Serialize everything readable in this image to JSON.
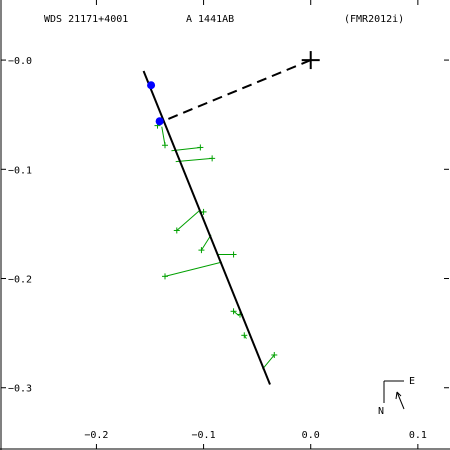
{
  "header": {
    "wds_id": "WDS 21171+4001",
    "discoverer": "A  1441AB",
    "reference": "(FMR2012i)"
  },
  "compass": {
    "east_label": "E",
    "north_label": "N"
  },
  "colors": {
    "axes": "#000000",
    "observations": "#00a000",
    "highlight_points": "#0000ff",
    "orbit_line": "#000000"
  },
  "chart_data": {
    "type": "scatter",
    "x_tick_labels": [
      "−0.2",
      "−0.1",
      "0.0",
      "0.1"
    ],
    "y_tick_labels": [
      "−0.0",
      "−0.1",
      "−0.2",
      "−0.3"
    ],
    "x_ticks": [
      -0.2,
      -0.1,
      0.0,
      0.1
    ],
    "y_ticks": [
      0.0,
      -0.1,
      -0.2,
      -0.3
    ],
    "xlim": [
      -0.29,
      0.13
    ],
    "ylim": [
      -0.357,
      0.055
    ],
    "primary": {
      "x": 0.0,
      "y": 0.0
    },
    "fit_line": [
      [
        -0.156,
        -0.01
      ],
      [
        -0.038,
        -0.297
      ]
    ],
    "residual_link": {
      "from": [
        0.0,
        0.0
      ],
      "to": [
        -0.143,
        -0.058
      ]
    },
    "observations": [
      {
        "x": -0.143,
        "y": -0.06,
        "px": -0.141,
        "py": -0.056
      },
      {
        "x": -0.136,
        "y": -0.078,
        "px": -0.139,
        "py": -0.061
      },
      {
        "x": -0.103,
        "y": -0.08,
        "px": -0.13,
        "py": -0.083
      },
      {
        "x": -0.092,
        "y": -0.09,
        "px": -0.126,
        "py": -0.093
      },
      {
        "x": -0.125,
        "y": -0.156,
        "px": -0.104,
        "py": -0.138
      },
      {
        "x": -0.1,
        "y": -0.139,
        "px": -0.104,
        "py": -0.14
      },
      {
        "x": -0.102,
        "y": -0.174,
        "px": -0.093,
        "py": -0.16
      },
      {
        "x": -0.072,
        "y": -0.178,
        "px": -0.087,
        "py": -0.178
      },
      {
        "x": -0.136,
        "y": -0.198,
        "px": -0.083,
        "py": -0.185
      },
      {
        "x": -0.072,
        "y": -0.23,
        "px": -0.067,
        "py": -0.234
      },
      {
        "x": -0.066,
        "y": -0.233,
        "px": -0.068,
        "py": -0.233
      },
      {
        "x": -0.062,
        "y": -0.252,
        "px": -0.06,
        "py": -0.255
      },
      {
        "x": -0.034,
        "y": -0.27,
        "px": -0.045,
        "py": -0.283
      }
    ],
    "highlight_points": [
      {
        "x": -0.149,
        "y": -0.023
      },
      {
        "x": -0.141,
        "y": -0.056
      }
    ]
  }
}
